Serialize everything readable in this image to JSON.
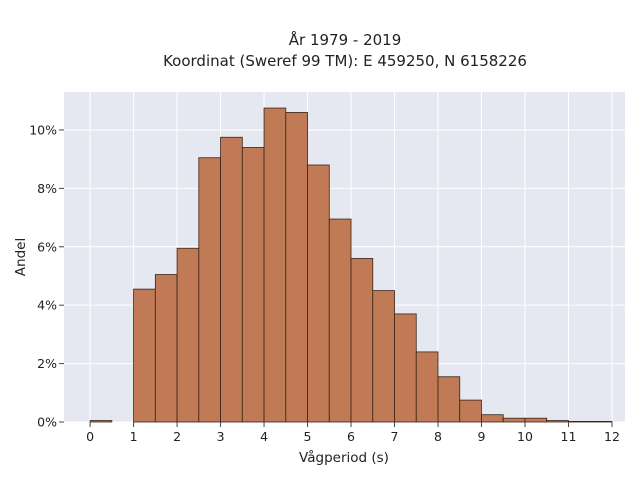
{
  "chart_data": {
    "type": "bar",
    "title_lines": [
      "År 1979 - 2019",
      "Koordinat (Sweref 99 TM): E 459250, N 6158226"
    ],
    "xlabel": "Vågperiod (s)",
    "ylabel": "Andel",
    "x_bin_width": 0.5,
    "x_bin_starts": [
      0,
      0.5,
      1,
      1.5,
      2,
      2.5,
      3,
      3.5,
      4,
      4.5,
      5,
      5.5,
      6,
      6.5,
      7,
      7.5,
      8,
      8.5,
      9,
      9.5,
      10,
      10.5,
      11,
      11.5
    ],
    "values": [
      0.05,
      0,
      4.55,
      5.05,
      5.95,
      9.05,
      9.75,
      9.4,
      10.75,
      10.6,
      8.8,
      6.95,
      5.6,
      4.5,
      3.7,
      2.4,
      1.55,
      0.75,
      0.25,
      0.13,
      0.13,
      0.05,
      0.02,
      0.02
    ],
    "x_ticks": [
      "0",
      "1",
      "2",
      "3",
      "4",
      "5",
      "6",
      "7",
      "8",
      "9",
      "10",
      "11",
      "12"
    ],
    "y_ticks": [
      "0%",
      "2%",
      "4%",
      "6%",
      "8%",
      "10%"
    ],
    "xlim": [
      -0.6,
      12.3
    ],
    "ylim": [
      0,
      11.3
    ],
    "grid": true,
    "colors": {
      "plot_background": "#e5e8f0",
      "grid": "#ffffff",
      "bar_fill": "#c07a55",
      "bar_stroke": "#3b2418"
    }
  }
}
